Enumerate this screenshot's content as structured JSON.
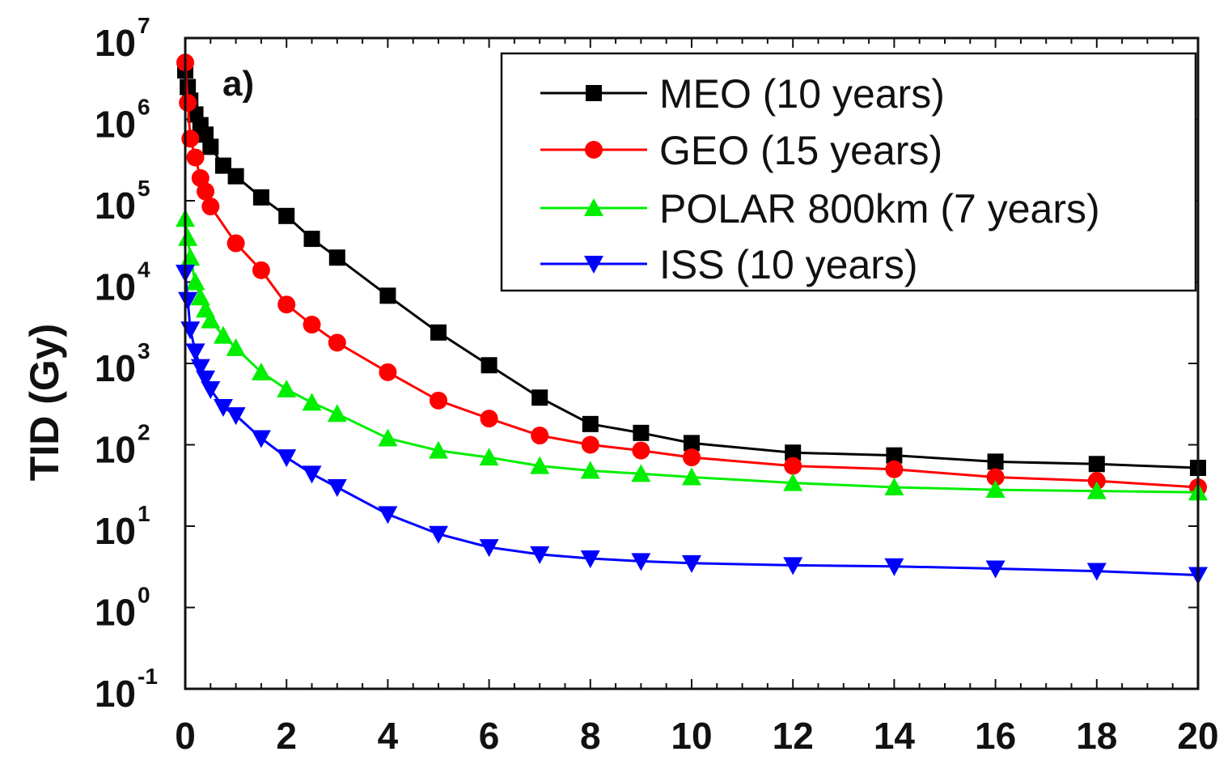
{
  "chart_data": {
    "type": "line",
    "title": "",
    "panel_label": "a)",
    "xlabel": "",
    "ylabel": "TID (Gy)",
    "xlim": [
      0,
      20
    ],
    "ylim": [
      0.1,
      10000000
    ],
    "yscale": "log",
    "x_ticks": [
      "0",
      "2",
      "4",
      "6",
      "8",
      "10",
      "12",
      "14",
      "16",
      "18",
      "20"
    ],
    "y_ticks": [
      {
        "base": "10",
        "exp": "-1"
      },
      {
        "base": "10",
        "exp": "0"
      },
      {
        "base": "10",
        "exp": "1"
      },
      {
        "base": "10",
        "exp": "2"
      },
      {
        "base": "10",
        "exp": "3"
      },
      {
        "base": "10",
        "exp": "4"
      },
      {
        "base": "10",
        "exp": "5"
      },
      {
        "base": "10",
        "exp": "6"
      },
      {
        "base": "10",
        "exp": "7"
      }
    ],
    "legend_position": "top-right",
    "series": [
      {
        "name": "MEO (10 years)",
        "color": "#000000",
        "marker": "square",
        "x": [
          0,
          0.05,
          0.1,
          0.2,
          0.3,
          0.4,
          0.5,
          0.75,
          1,
          1.5,
          2,
          2.5,
          3,
          4,
          5,
          6,
          7,
          8,
          9,
          10,
          12,
          14,
          16,
          18,
          20
        ],
        "y": [
          4000000,
          2500000,
          1700000,
          1150000,
          850000,
          650000,
          460000,
          270000,
          200000,
          110000,
          65000,
          34000,
          20000,
          6800,
          2400,
          950,
          380,
          180,
          140,
          105,
          80,
          74,
          62,
          58,
          52
        ]
      },
      {
        "name": "GEO (15 years)",
        "color": "#ff0000",
        "marker": "circle",
        "x": [
          0,
          0.05,
          0.1,
          0.2,
          0.3,
          0.4,
          0.5,
          1,
          1.5,
          2,
          2.5,
          3,
          4,
          5,
          6,
          7,
          8,
          9,
          10,
          12,
          14,
          16,
          18,
          20
        ],
        "y": [
          5000000,
          1600000,
          580000,
          340000,
          190000,
          130000,
          85000,
          30000,
          14000,
          5300,
          3000,
          1800,
          780,
          350,
          210,
          130,
          100,
          85,
          70,
          55,
          50,
          40,
          36,
          30
        ]
      },
      {
        "name": "POLAR 800km (7 years)",
        "color": "#00ee00",
        "marker": "triangle-up",
        "x": [
          0,
          0.05,
          0.1,
          0.2,
          0.3,
          0.4,
          0.5,
          0.75,
          1,
          1.5,
          2,
          2.5,
          3,
          4,
          5,
          6,
          7,
          8,
          9,
          10,
          12,
          14,
          16,
          18,
          20
        ],
        "y": [
          60000,
          35000,
          20000,
          10000,
          6500,
          4600,
          3400,
          2200,
          1550,
          780,
          480,
          330,
          240,
          120,
          85,
          70,
          55,
          48,
          44,
          40,
          34,
          30,
          28,
          27,
          26
        ]
      },
      {
        "name": "ISS (10 years)",
        "color": "#0000ff",
        "marker": "triangle-down",
        "x": [
          0,
          0.05,
          0.1,
          0.2,
          0.3,
          0.4,
          0.5,
          0.75,
          1,
          1.5,
          2,
          2.5,
          3,
          4,
          5,
          6,
          7,
          8,
          9,
          10,
          12,
          14,
          16,
          18,
          20
        ],
        "y": [
          13000,
          6000,
          2600,
          1400,
          900,
          650,
          480,
          290,
          230,
          120,
          70,
          44,
          30,
          14,
          8,
          5.5,
          4.5,
          4,
          3.7,
          3.5,
          3.3,
          3.2,
          3,
          2.8,
          2.5
        ]
      }
    ]
  }
}
